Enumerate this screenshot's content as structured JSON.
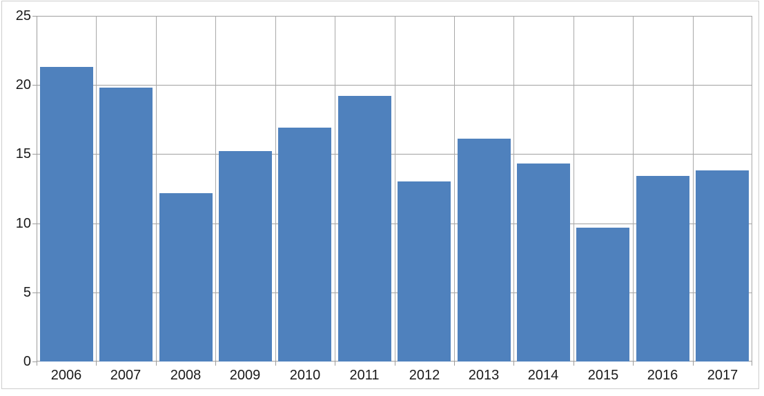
{
  "chart_data": {
    "type": "bar",
    "title": "",
    "xlabel": "",
    "ylabel": "",
    "categories": [
      "2006",
      "2007",
      "2008",
      "2009",
      "2010",
      "2011",
      "2012",
      "2013",
      "2014",
      "2015",
      "2016",
      "2017"
    ],
    "values": [
      21.3,
      19.8,
      12.2,
      15.2,
      16.9,
      19.2,
      13.0,
      16.1,
      14.3,
      9.7,
      13.4,
      13.8
    ],
    "ylim": [
      0,
      25
    ],
    "yticks": [
      0,
      5,
      10,
      15,
      20,
      25
    ],
    "ytick_labels": [
      "0",
      "5",
      "10",
      "15",
      "20",
      "25"
    ],
    "grid": {
      "horizontal": true,
      "vertical": true
    },
    "legend": false
  },
  "colors": {
    "bar_fill": "#4f81bd",
    "gridline_horizontal": "#a0a0a0",
    "gridline_vertical": "#a8a8a8",
    "axis_line": "#9b9b9b",
    "frame_border": "#cdcdcd",
    "tick_label_text": "#1a1a1a",
    "background": "#ffffff"
  }
}
